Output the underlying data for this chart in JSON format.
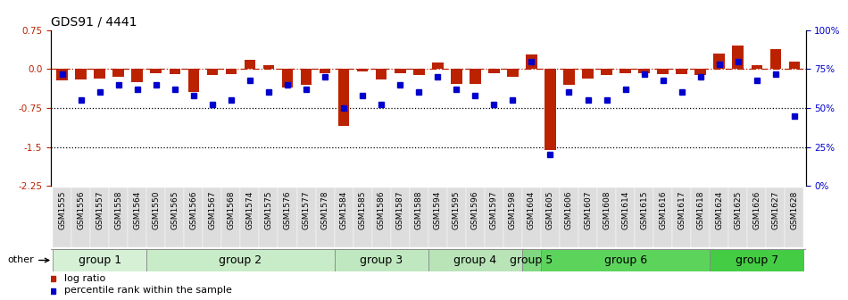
{
  "title": "GDS91 / 4441",
  "samples": [
    "GSM1555",
    "GSM1556",
    "GSM1557",
    "GSM1558",
    "GSM1564",
    "GSM1550",
    "GSM1565",
    "GSM1566",
    "GSM1567",
    "GSM1568",
    "GSM1574",
    "GSM1575",
    "GSM1576",
    "GSM1577",
    "GSM1578",
    "GSM1584",
    "GSM1585",
    "GSM1586",
    "GSM1587",
    "GSM1588",
    "GSM1594",
    "GSM1595",
    "GSM1596",
    "GSM1597",
    "GSM1598",
    "GSM1604",
    "GSM1605",
    "GSM1606",
    "GSM1607",
    "GSM1608",
    "GSM1614",
    "GSM1615",
    "GSM1616",
    "GSM1617",
    "GSM1618",
    "GSM1624",
    "GSM1625",
    "GSM1626",
    "GSM1627",
    "GSM1628"
  ],
  "log_ratio": [
    -0.22,
    -0.2,
    -0.18,
    -0.15,
    -0.25,
    -0.08,
    -0.1,
    -0.45,
    -0.12,
    -0.1,
    0.18,
    0.08,
    -0.35,
    -0.3,
    -0.08,
    -1.1,
    -0.05,
    -0.2,
    -0.08,
    -0.12,
    0.12,
    -0.28,
    -0.28,
    -0.08,
    -0.15,
    0.28,
    -1.55,
    -0.3,
    -0.18,
    -0.12,
    -0.08,
    -0.08,
    -0.1,
    -0.1,
    -0.12,
    0.3,
    0.45,
    0.08,
    0.38,
    0.15
  ],
  "percentile": [
    72,
    55,
    60,
    65,
    62,
    65,
    62,
    58,
    52,
    55,
    68,
    60,
    65,
    62,
    70,
    50,
    58,
    52,
    65,
    60,
    70,
    62,
    58,
    52,
    55,
    80,
    20,
    60,
    55,
    55,
    62,
    72,
    68,
    60,
    70,
    78,
    80,
    68,
    72,
    45
  ],
  "groups": [
    {
      "name": "group 1",
      "start": 0,
      "end": 5,
      "color": "#d5f0d5"
    },
    {
      "name": "group 2",
      "start": 5,
      "end": 15,
      "color": "#c8ecc8"
    },
    {
      "name": "group 3",
      "start": 15,
      "end": 20,
      "color": "#c0e8c0"
    },
    {
      "name": "group 4",
      "start": 20,
      "end": 25,
      "color": "#b8e4b8"
    },
    {
      "name": "group 5",
      "start": 25,
      "end": 26,
      "color": "#80d880"
    },
    {
      "name": "group 6",
      "start": 26,
      "end": 35,
      "color": "#5cd45c"
    },
    {
      "name": "group 7",
      "start": 35,
      "end": 40,
      "color": "#44cc44"
    }
  ],
  "ylim": [
    -2.25,
    0.75
  ],
  "yticks_left": [
    0.75,
    0.0,
    -0.75,
    -1.5,
    -2.25
  ],
  "yticks_right_vals": [
    100,
    75,
    50,
    25,
    0
  ],
  "yticks_right_pos": [
    0.75,
    0.0,
    -0.75,
    -1.5,
    -2.25
  ],
  "bar_color": "#bb2200",
  "dot_color": "#0000cc",
  "hline_color": "#bb2200",
  "dotted_line_color": "#000000",
  "bg_color": "#ffffff",
  "tick_bg_color": "#dddddd",
  "title_fontsize": 10,
  "tick_fontsize": 7.5,
  "xtick_fontsize": 6.5,
  "group_label_fontsize": 9,
  "legend_fontsize": 8
}
